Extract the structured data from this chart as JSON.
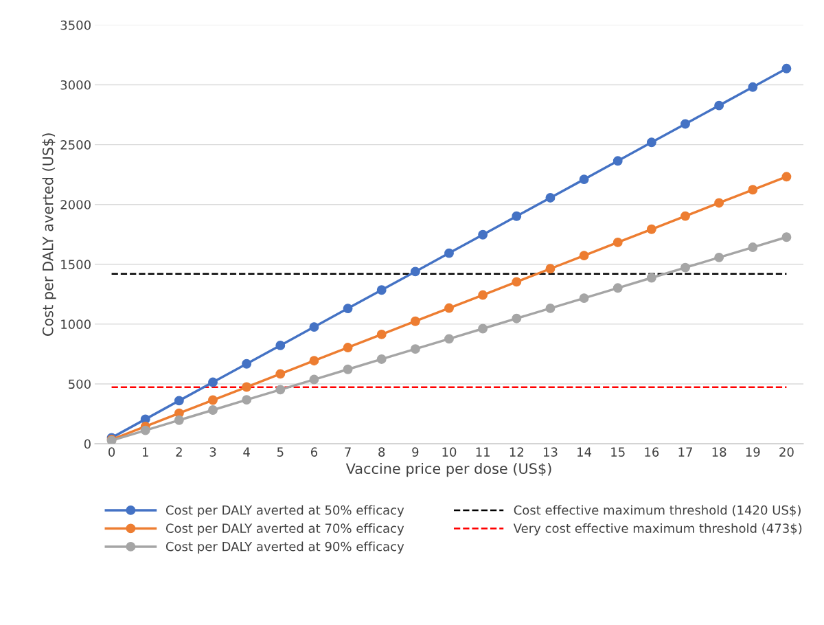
{
  "chart_data": {
    "type": "line",
    "xlabel": "Vaccine price per dose (US$)",
    "ylabel": "Cost per DALY averted (US$)",
    "categories": [
      "0",
      "1",
      "2",
      "3",
      "4",
      "5",
      "6",
      "7",
      "8",
      "9",
      "10",
      "11",
      "12",
      "13",
      "14",
      "15",
      "16",
      "17",
      "18",
      "19",
      "20"
    ],
    "series": [
      {
        "name": "Cost per DALY averted at 50% efficacy",
        "color": "#4472c4",
        "values": [
          50,
          205,
          360,
          514,
          668,
          822,
          976,
          1131,
          1285,
          1439,
          1593,
          1747,
          1902,
          2056,
          2210,
          2364,
          2519,
          2673,
          2827,
          2981,
          3136
        ]
      },
      {
        "name": "Cost per DALY averted at 70% efficacy",
        "color": "#ed7d31",
        "values": [
          35,
          145,
          255,
          365,
          474,
          584,
          694,
          804,
          914,
          1024,
          1134,
          1243,
          1353,
          1463,
          1573,
          1683,
          1793,
          1903,
          2013,
          2123,
          2232
        ]
      },
      {
        "name": "Cost per DALY averted at 90% efficacy",
        "color": "#a5a5a5",
        "values": [
          27,
          112,
          197,
          282,
          367,
          452,
          537,
          622,
          707,
          792,
          877,
          962,
          1047,
          1132,
          1217,
          1302,
          1387,
          1472,
          1557,
          1642,
          1727
        ]
      }
    ],
    "ref_lines": [
      {
        "axis": "y",
        "value": 1420,
        "label": "Cost effective maximum threshold (1420 US$)",
        "color": "#000000",
        "line_style": "dashed"
      },
      {
        "axis": "y",
        "value": 473,
        "label": "Very cost effective maximum threshold (473$)",
        "color": "#ff0000",
        "line_style": "dashed"
      }
    ],
    "ylim": [
      0,
      3500
    ],
    "yticks": [
      0,
      500,
      1000,
      1500,
      2000,
      2500,
      3000,
      3500
    ],
    "grid": "y",
    "legend": "bottom",
    "marker": "circle",
    "line_style": "solid"
  }
}
